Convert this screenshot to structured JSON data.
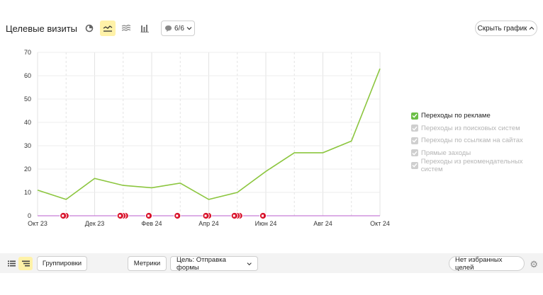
{
  "header": {
    "title": "Целевые визиты",
    "view_buttons": [
      {
        "name": "pie-chart-icon",
        "active": false
      },
      {
        "name": "line-chart-icon",
        "active": true
      },
      {
        "name": "area-chart-icon",
        "active": false
      },
      {
        "name": "bar-chart-icon",
        "active": false
      }
    ],
    "comments_count": "6/6",
    "hide_chart_label": "Скрыть график"
  },
  "chart_data": {
    "type": "line",
    "x": [
      "2023-10",
      "2023-11",
      "2023-12",
      "2024-01",
      "2024-02",
      "2024-03",
      "2024-04",
      "2024-05",
      "2024-06",
      "2024-07",
      "2024-08",
      "2024-09",
      "2024-10"
    ],
    "tick_labels": [
      "Окт 23",
      "Дек 23",
      "Фев 24",
      "Апр 24",
      "Июн 24",
      "Авг 24",
      "Окт 24"
    ],
    "y_ticks": [
      "0",
      "10",
      "20",
      "30",
      "40",
      "50",
      "60",
      "70"
    ],
    "ylim": [
      0,
      70
    ],
    "series": [
      {
        "name": "Переходы по рекламе",
        "color": "#8cc63f",
        "values": [
          11,
          7,
          16,
          13,
          12,
          14,
          7,
          10,
          19,
          27,
          27,
          32,
          63
        ]
      },
      {
        "name": "",
        "color": "#c77dd8",
        "values": [
          0,
          0,
          0,
          0,
          0,
          0,
          0,
          0,
          0,
          0,
          0,
          0,
          0
        ]
      }
    ],
    "markers": [
      {
        "month": 1.0,
        "count": 2
      },
      {
        "month": 3.0,
        "count": 3
      },
      {
        "month": 4.0,
        "count": 1
      },
      {
        "month": 5.0,
        "count": 1
      },
      {
        "month": 6.0,
        "count": 2
      },
      {
        "month": 7.0,
        "count": 3
      },
      {
        "month": 8.0,
        "count": 1
      }
    ],
    "grid": true,
    "legend_position": "right"
  },
  "legend": {
    "items": [
      {
        "label": "Переходы по рекламе",
        "checked": true
      },
      {
        "label": "Переходы из поисковых систем",
        "checked": false
      },
      {
        "label": "Переходы по ссылкам на сайтах",
        "checked": false
      },
      {
        "label": "Прямые заходы",
        "checked": false
      },
      {
        "label": "Переходы из рекомендательных систем",
        "checked": false
      }
    ]
  },
  "bottom": {
    "groupings_label": "Группировки",
    "metrics_label": "Метрики",
    "goal_label": "Цель: Отправка формы",
    "favorites_label": "Нет избранных целей"
  },
  "colors": {
    "accent_yellow": "#fff2a8",
    "line_green": "#8cc63f",
    "marker_red": "#d8112a",
    "baseline_purple": "#c77dd8"
  }
}
